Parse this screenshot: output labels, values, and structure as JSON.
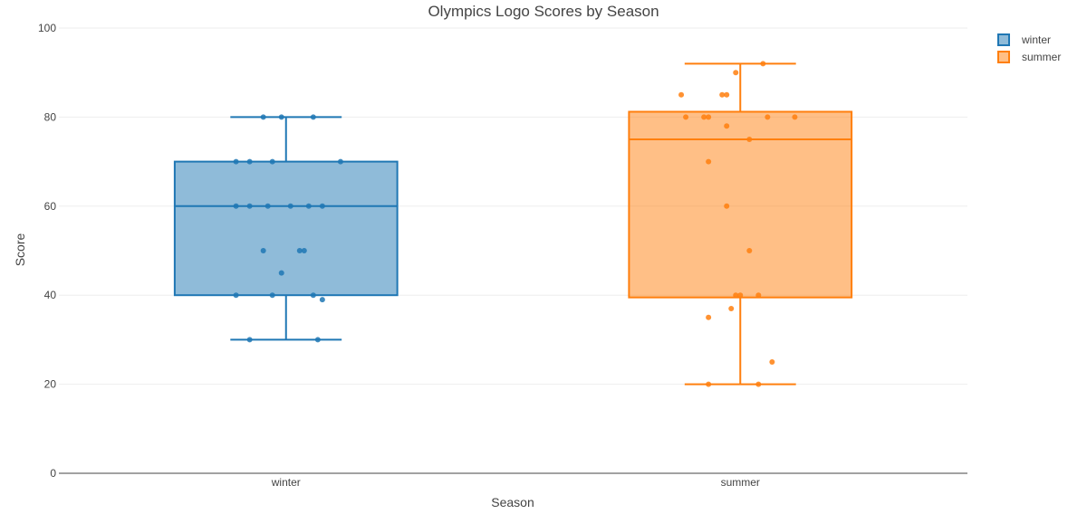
{
  "chart_data": {
    "type": "box",
    "title": "Olympics Logo Scores by Season",
    "xlabel": "Season",
    "ylabel": "Score",
    "ylim": [
      0,
      100
    ],
    "yticks": [
      0,
      20,
      40,
      60,
      80,
      100
    ],
    "grid": true,
    "legend_position": "top-right",
    "categories": [
      "winter",
      "summer"
    ],
    "series": [
      {
        "name": "winter",
        "color": "#1f77b4",
        "box": {
          "lowerfence": 30,
          "q1": 40,
          "median": 60,
          "q3": 70,
          "upperfence": 80
        },
        "points": [
          [
            -0.05,
            80
          ],
          [
            -0.01,
            80
          ],
          [
            0.06,
            80
          ],
          [
            -0.11,
            70
          ],
          [
            -0.08,
            70
          ],
          [
            -0.03,
            70
          ],
          [
            0.12,
            70
          ],
          [
            -0.11,
            60
          ],
          [
            -0.08,
            60
          ],
          [
            -0.04,
            60
          ],
          [
            0.05,
            60
          ],
          [
            0.08,
            60
          ],
          [
            0.01,
            60
          ],
          [
            -0.05,
            50
          ],
          [
            0.03,
            50
          ],
          [
            0.04,
            50
          ],
          [
            -0.01,
            45
          ],
          [
            -0.11,
            40
          ],
          [
            -0.03,
            40
          ],
          [
            0.06,
            40
          ],
          [
            0.08,
            39
          ],
          [
            -0.08,
            30
          ],
          [
            0.07,
            30
          ]
        ]
      },
      {
        "name": "summer",
        "color": "#ff7f0e",
        "box": {
          "lowerfence": 20,
          "q1": 39.5,
          "median": 75,
          "q3": 81.2,
          "upperfence": 92
        },
        "points": [
          [
            0.05,
            92
          ],
          [
            -0.01,
            90
          ],
          [
            -0.13,
            85
          ],
          [
            -0.04,
            85
          ],
          [
            -0.03,
            85
          ],
          [
            -0.12,
            80
          ],
          [
            -0.08,
            80
          ],
          [
            -0.07,
            80
          ],
          [
            0.06,
            80
          ],
          [
            0.12,
            80
          ],
          [
            -0.03,
            78
          ],
          [
            0.02,
            75
          ],
          [
            -0.07,
            70
          ],
          [
            -0.03,
            60
          ],
          [
            0.02,
            50
          ],
          [
            -0.01,
            40
          ],
          [
            0.0,
            40
          ],
          [
            0.04,
            40
          ],
          [
            -0.02,
            37
          ],
          [
            -0.07,
            35
          ],
          [
            0.07,
            25
          ],
          [
            -0.07,
            20
          ],
          [
            0.04,
            20
          ]
        ]
      }
    ]
  }
}
